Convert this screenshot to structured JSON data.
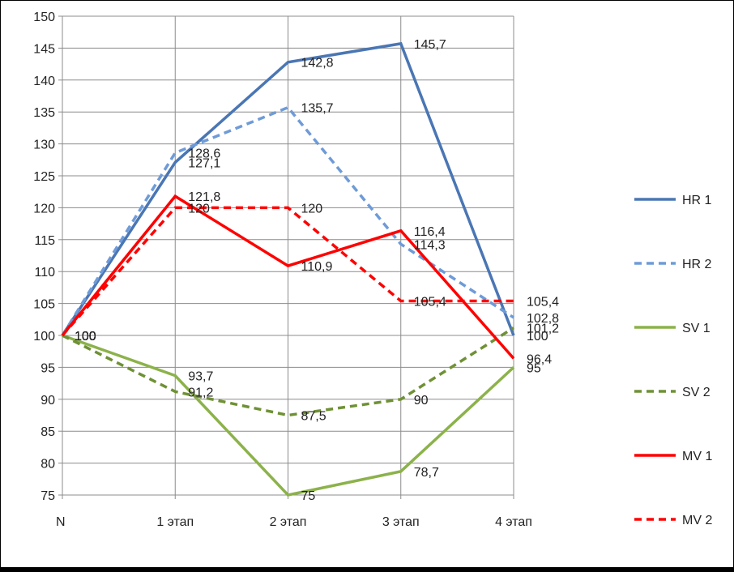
{
  "chart_data": {
    "type": "line",
    "title": "",
    "xlabel": "",
    "ylabel": "",
    "categories": [
      "N",
      "1 этап",
      "2 этап",
      "3 этап",
      "4 этап"
    ],
    "ylim": [
      75,
      150
    ],
    "ytick_step": 5,
    "grid": true,
    "legend_position": "right",
    "series": [
      {
        "name": "HR 1",
        "values": [
          100,
          127.1,
          142.8,
          145.7,
          100
        ],
        "labels": [
          "100",
          "127,1",
          "142,8",
          "145,7",
          "100"
        ],
        "color": "#4a76b4",
        "dash": false
      },
      {
        "name": "HR 2",
        "values": [
          100,
          128.6,
          135.7,
          114.3,
          102.8
        ],
        "labels": [
          "100",
          "128,6",
          "135,7",
          "114,3",
          "102,8"
        ],
        "color": "#6e9bd8",
        "dash": true
      },
      {
        "name": "SV 1",
        "values": [
          100,
          93.7,
          75,
          78.7,
          95
        ],
        "labels": [
          "100",
          "93,7",
          "75",
          "78,7",
          "95"
        ],
        "color": "#8cb24a",
        "dash": false
      },
      {
        "name": "SV 2",
        "values": [
          100,
          91.2,
          87.5,
          90,
          101.2
        ],
        "labels": [
          "100",
          "91,2",
          "87,5",
          "90",
          "101,2"
        ],
        "color": "#6f9135",
        "dash": true
      },
      {
        "name": "MV 1",
        "values": [
          100,
          121.8,
          110.9,
          116.4,
          96.4
        ],
        "labels": [
          "100",
          "121,8",
          "110,9",
          "116,4",
          "96,4"
        ],
        "color": "#ff0000",
        "dash": false
      },
      {
        "name": "MV 2",
        "values": [
          100,
          120,
          120,
          105.4,
          105.4
        ],
        "labels": [
          "100",
          "120",
          "120",
          "105,4",
          "105,4"
        ],
        "color": "#ff0000",
        "dash": true
      }
    ]
  }
}
